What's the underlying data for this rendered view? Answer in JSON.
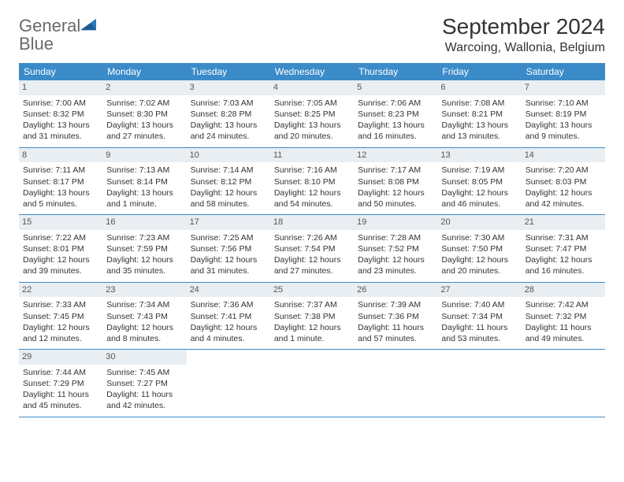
{
  "logo": {
    "text_general": "General",
    "text_blue": "Blue"
  },
  "title": "September 2024",
  "location": "Warcoing, Wallonia, Belgium",
  "colors": {
    "header_bg": "#3b8bc9",
    "header_text": "#ffffff",
    "daynum_bg": "#e9eef2",
    "border": "#3b8bc9",
    "body_text": "#333333",
    "logo_gray": "#6a6a6a",
    "logo_blue": "#2a77bb"
  },
  "days_of_week": [
    "Sunday",
    "Monday",
    "Tuesday",
    "Wednesday",
    "Thursday",
    "Friday",
    "Saturday"
  ],
  "weeks": [
    [
      {
        "n": "1",
        "sr": "Sunrise: 7:00 AM",
        "ss": "Sunset: 8:32 PM",
        "dl": "Daylight: 13 hours and 31 minutes."
      },
      {
        "n": "2",
        "sr": "Sunrise: 7:02 AM",
        "ss": "Sunset: 8:30 PM",
        "dl": "Daylight: 13 hours and 27 minutes."
      },
      {
        "n": "3",
        "sr": "Sunrise: 7:03 AM",
        "ss": "Sunset: 8:28 PM",
        "dl": "Daylight: 13 hours and 24 minutes."
      },
      {
        "n": "4",
        "sr": "Sunrise: 7:05 AM",
        "ss": "Sunset: 8:25 PM",
        "dl": "Daylight: 13 hours and 20 minutes."
      },
      {
        "n": "5",
        "sr": "Sunrise: 7:06 AM",
        "ss": "Sunset: 8:23 PM",
        "dl": "Daylight: 13 hours and 16 minutes."
      },
      {
        "n": "6",
        "sr": "Sunrise: 7:08 AM",
        "ss": "Sunset: 8:21 PM",
        "dl": "Daylight: 13 hours and 13 minutes."
      },
      {
        "n": "7",
        "sr": "Sunrise: 7:10 AM",
        "ss": "Sunset: 8:19 PM",
        "dl": "Daylight: 13 hours and 9 minutes."
      }
    ],
    [
      {
        "n": "8",
        "sr": "Sunrise: 7:11 AM",
        "ss": "Sunset: 8:17 PM",
        "dl": "Daylight: 13 hours and 5 minutes."
      },
      {
        "n": "9",
        "sr": "Sunrise: 7:13 AM",
        "ss": "Sunset: 8:14 PM",
        "dl": "Daylight: 13 hours and 1 minute."
      },
      {
        "n": "10",
        "sr": "Sunrise: 7:14 AM",
        "ss": "Sunset: 8:12 PM",
        "dl": "Daylight: 12 hours and 58 minutes."
      },
      {
        "n": "11",
        "sr": "Sunrise: 7:16 AM",
        "ss": "Sunset: 8:10 PM",
        "dl": "Daylight: 12 hours and 54 minutes."
      },
      {
        "n": "12",
        "sr": "Sunrise: 7:17 AM",
        "ss": "Sunset: 8:08 PM",
        "dl": "Daylight: 12 hours and 50 minutes."
      },
      {
        "n": "13",
        "sr": "Sunrise: 7:19 AM",
        "ss": "Sunset: 8:05 PM",
        "dl": "Daylight: 12 hours and 46 minutes."
      },
      {
        "n": "14",
        "sr": "Sunrise: 7:20 AM",
        "ss": "Sunset: 8:03 PM",
        "dl": "Daylight: 12 hours and 42 minutes."
      }
    ],
    [
      {
        "n": "15",
        "sr": "Sunrise: 7:22 AM",
        "ss": "Sunset: 8:01 PM",
        "dl": "Daylight: 12 hours and 39 minutes."
      },
      {
        "n": "16",
        "sr": "Sunrise: 7:23 AM",
        "ss": "Sunset: 7:59 PM",
        "dl": "Daylight: 12 hours and 35 minutes."
      },
      {
        "n": "17",
        "sr": "Sunrise: 7:25 AM",
        "ss": "Sunset: 7:56 PM",
        "dl": "Daylight: 12 hours and 31 minutes."
      },
      {
        "n": "18",
        "sr": "Sunrise: 7:26 AM",
        "ss": "Sunset: 7:54 PM",
        "dl": "Daylight: 12 hours and 27 minutes."
      },
      {
        "n": "19",
        "sr": "Sunrise: 7:28 AM",
        "ss": "Sunset: 7:52 PM",
        "dl": "Daylight: 12 hours and 23 minutes."
      },
      {
        "n": "20",
        "sr": "Sunrise: 7:30 AM",
        "ss": "Sunset: 7:50 PM",
        "dl": "Daylight: 12 hours and 20 minutes."
      },
      {
        "n": "21",
        "sr": "Sunrise: 7:31 AM",
        "ss": "Sunset: 7:47 PM",
        "dl": "Daylight: 12 hours and 16 minutes."
      }
    ],
    [
      {
        "n": "22",
        "sr": "Sunrise: 7:33 AM",
        "ss": "Sunset: 7:45 PM",
        "dl": "Daylight: 12 hours and 12 minutes."
      },
      {
        "n": "23",
        "sr": "Sunrise: 7:34 AM",
        "ss": "Sunset: 7:43 PM",
        "dl": "Daylight: 12 hours and 8 minutes."
      },
      {
        "n": "24",
        "sr": "Sunrise: 7:36 AM",
        "ss": "Sunset: 7:41 PM",
        "dl": "Daylight: 12 hours and 4 minutes."
      },
      {
        "n": "25",
        "sr": "Sunrise: 7:37 AM",
        "ss": "Sunset: 7:38 PM",
        "dl": "Daylight: 12 hours and 1 minute."
      },
      {
        "n": "26",
        "sr": "Sunrise: 7:39 AM",
        "ss": "Sunset: 7:36 PM",
        "dl": "Daylight: 11 hours and 57 minutes."
      },
      {
        "n": "27",
        "sr": "Sunrise: 7:40 AM",
        "ss": "Sunset: 7:34 PM",
        "dl": "Daylight: 11 hours and 53 minutes."
      },
      {
        "n": "28",
        "sr": "Sunrise: 7:42 AM",
        "ss": "Sunset: 7:32 PM",
        "dl": "Daylight: 11 hours and 49 minutes."
      }
    ],
    [
      {
        "n": "29",
        "sr": "Sunrise: 7:44 AM",
        "ss": "Sunset: 7:29 PM",
        "dl": "Daylight: 11 hours and 45 minutes."
      },
      {
        "n": "30",
        "sr": "Sunrise: 7:45 AM",
        "ss": "Sunset: 7:27 PM",
        "dl": "Daylight: 11 hours and 42 minutes."
      },
      null,
      null,
      null,
      null,
      null
    ]
  ]
}
